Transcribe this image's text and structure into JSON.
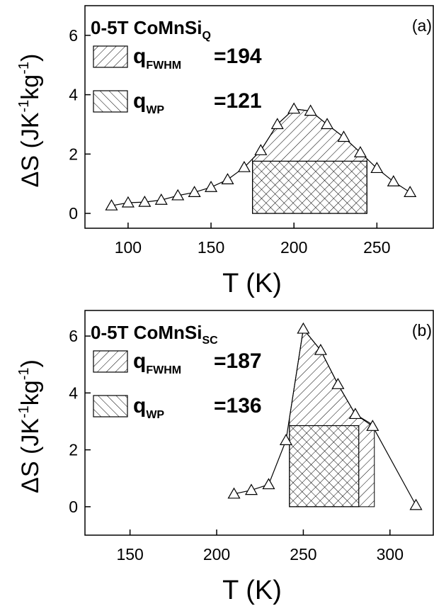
{
  "chart_data": [
    {
      "type": "line",
      "title": "0-5T  CoMnSi",
      "title_sub": "Q",
      "panel_label": "(a)",
      "xlabel": "T (K)",
      "ylabel_parts": [
        "ΔS (JK",
        "-1",
        "kg",
        "-1",
        ")"
      ],
      "x": [
        90,
        100,
        110,
        120,
        130,
        140,
        150,
        160,
        170,
        180,
        190,
        200,
        210,
        220,
        230,
        240,
        250,
        260,
        270
      ],
      "values": [
        0.26,
        0.36,
        0.38,
        0.45,
        0.6,
        0.71,
        0.88,
        1.14,
        1.55,
        2.12,
        3.0,
        3.52,
        3.45,
        3.0,
        2.57,
        2.05,
        1.52,
        1.07,
        0.71
      ],
      "color": "#000000",
      "xlim": [
        74,
        284
      ],
      "ylim": [
        -0.5,
        7
      ],
      "xticks": [
        100,
        150,
        200,
        250
      ],
      "yticks": [
        0,
        2,
        4,
        6
      ],
      "fwhm_range": [
        175,
        244
      ],
      "wp_range": [
        175,
        244
      ],
      "half_max": 1.76,
      "legend": [
        {
          "name": "q",
          "sub": "FWHM",
          "label": "=194"
        },
        {
          "name": "q",
          "sub": "WP",
          "label": "=121"
        }
      ]
    },
    {
      "type": "line",
      "title": "0-5T CoMnSi",
      "title_sub": "SC",
      "panel_label": "(b)",
      "xlabel": "T (K)",
      "ylabel_parts": [
        "ΔS (JK",
        "-1",
        "kg",
        "-1",
        ")"
      ],
      "x": [
        210,
        220,
        230,
        240,
        250,
        260,
        270,
        280,
        290,
        315
      ],
      "values": [
        0.45,
        0.58,
        0.78,
        2.33,
        6.25,
        5.5,
        4.3,
        3.25,
        2.83,
        0.05
      ],
      "color": "#000000",
      "xlim": [
        124,
        325
      ],
      "ylim": [
        -1,
        6.9
      ],
      "xticks": [
        150,
        200,
        250,
        300
      ],
      "yticks": [
        0,
        2,
        4,
        6
      ],
      "fwhm_range": [
        242,
        291
      ],
      "wp_range": [
        242,
        282
      ],
      "half_max": 2.85,
      "legend": [
        {
          "name": "q",
          "sub": "FWHM",
          "label": "=187"
        },
        {
          "name": "q",
          "sub": "WP",
          "label": "=136"
        }
      ]
    }
  ]
}
